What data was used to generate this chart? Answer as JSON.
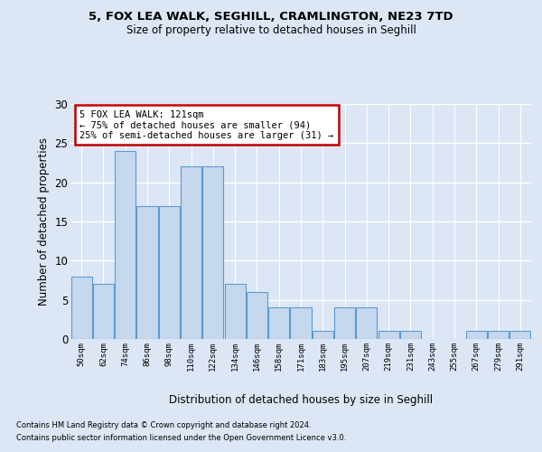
{
  "title1": "5, FOX LEA WALK, SEGHILL, CRAMLINGTON, NE23 7TD",
  "title2": "Size of property relative to detached houses in Seghill",
  "xlabel": "Distribution of detached houses by size in Seghill",
  "ylabel": "Number of detached properties",
  "categories": [
    "50sqm",
    "62sqm",
    "74sqm",
    "86sqm",
    "98sqm",
    "110sqm",
    "122sqm",
    "134sqm",
    "146sqm",
    "158sqm",
    "171sqm",
    "183sqm",
    "195sqm",
    "207sqm",
    "219sqm",
    "231sqm",
    "243sqm",
    "255sqm",
    "267sqm",
    "279sqm",
    "291sqm"
  ],
  "values": [
    8,
    7,
    24,
    17,
    17,
    22,
    22,
    7,
    6,
    4,
    4,
    1,
    4,
    4,
    1,
    1,
    0,
    0,
    1,
    1,
    1
  ],
  "highlight_index": 6,
  "bar_color": "#c5d8ed",
  "bar_edge_color": "#5b9bd5",
  "annotation_text": "5 FOX LEA WALK: 121sqm\n← 75% of detached houses are smaller (94)\n25% of semi-detached houses are larger (31) →",
  "annotation_box_edge": "#c00000",
  "background_color": "#dce6f5",
  "grid_color": "#ffffff",
  "ylim": [
    0,
    30
  ],
  "yticks": [
    0,
    5,
    10,
    15,
    20,
    25,
    30
  ],
  "footer_line1": "Contains HM Land Registry data © Crown copyright and database right 2024.",
  "footer_line2": "Contains public sector information licensed under the Open Government Licence v3.0."
}
